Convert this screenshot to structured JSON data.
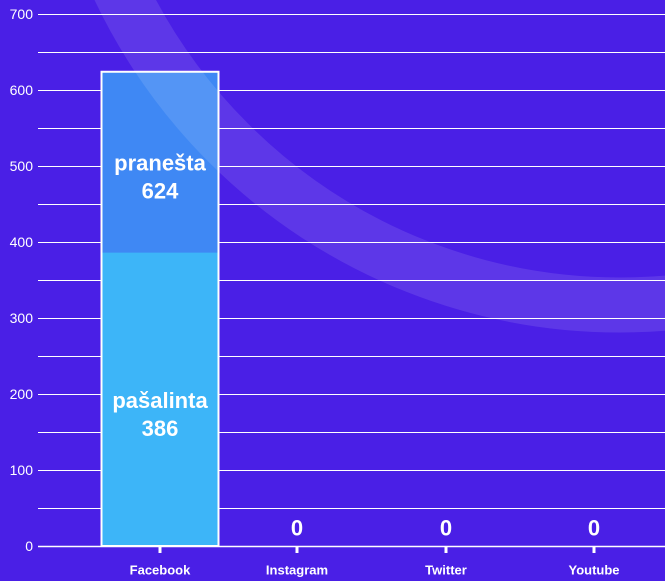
{
  "chart_data": {
    "type": "bar",
    "bar_mode": "overlay",
    "categories": [
      "Facebook",
      "Instagram",
      "Twitter",
      "Youtube"
    ],
    "series": [
      {
        "name": "pranešta",
        "values": [
          624,
          0,
          0,
          0
        ],
        "color": "#3f88f4"
      },
      {
        "name": "pašalinta",
        "values": [
          386,
          0,
          0,
          0
        ],
        "color": "#3db5f8"
      }
    ],
    "title": "",
    "xlabel": "",
    "ylabel": "",
    "ylim": [
      0,
      700
    ],
    "yticks": [
      0,
      100,
      200,
      300,
      400,
      500,
      600,
      700
    ],
    "grid": true,
    "grid_step": 50,
    "legend": "none"
  },
  "colors": {
    "background": "#4a1fe6",
    "grid": "#ffffff",
    "text": "#ffffff",
    "bar_outline": "#ffffff",
    "decor_arc": "rgba(255,255,255,0.11)"
  }
}
